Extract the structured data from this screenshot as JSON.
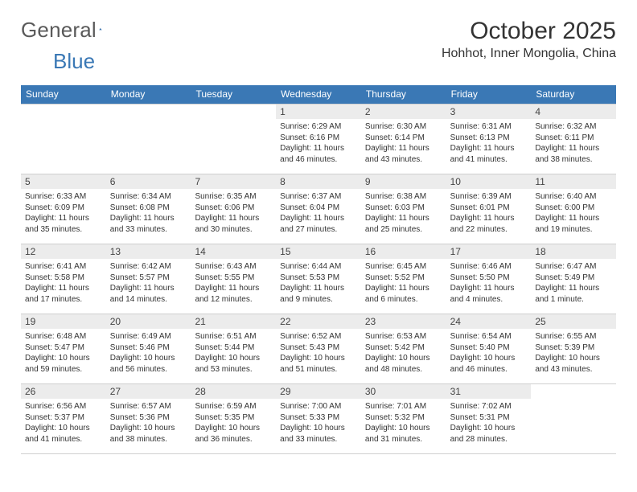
{
  "logo": {
    "general": "General",
    "blue": "Blue"
  },
  "header": {
    "month_title": "October 2025",
    "location": "Hohhot, Inner Mongolia, China"
  },
  "colors": {
    "header_bg": "#3a78b5",
    "header_text": "#ffffff",
    "daynum_bg": "#ececec",
    "border": "#cfcfcf",
    "text": "#333333"
  },
  "day_names": [
    "Sunday",
    "Monday",
    "Tuesday",
    "Wednesday",
    "Thursday",
    "Friday",
    "Saturday"
  ],
  "weeks": [
    [
      {
        "blank": true
      },
      {
        "blank": true
      },
      {
        "blank": true
      },
      {
        "d": "1",
        "sr": "Sunrise: 6:29 AM",
        "ss": "Sunset: 6:16 PM",
        "dl1": "Daylight: 11 hours",
        "dl2": "and 46 minutes."
      },
      {
        "d": "2",
        "sr": "Sunrise: 6:30 AM",
        "ss": "Sunset: 6:14 PM",
        "dl1": "Daylight: 11 hours",
        "dl2": "and 43 minutes."
      },
      {
        "d": "3",
        "sr": "Sunrise: 6:31 AM",
        "ss": "Sunset: 6:13 PM",
        "dl1": "Daylight: 11 hours",
        "dl2": "and 41 minutes."
      },
      {
        "d": "4",
        "sr": "Sunrise: 6:32 AM",
        "ss": "Sunset: 6:11 PM",
        "dl1": "Daylight: 11 hours",
        "dl2": "and 38 minutes."
      }
    ],
    [
      {
        "d": "5",
        "sr": "Sunrise: 6:33 AM",
        "ss": "Sunset: 6:09 PM",
        "dl1": "Daylight: 11 hours",
        "dl2": "and 35 minutes."
      },
      {
        "d": "6",
        "sr": "Sunrise: 6:34 AM",
        "ss": "Sunset: 6:08 PM",
        "dl1": "Daylight: 11 hours",
        "dl2": "and 33 minutes."
      },
      {
        "d": "7",
        "sr": "Sunrise: 6:35 AM",
        "ss": "Sunset: 6:06 PM",
        "dl1": "Daylight: 11 hours",
        "dl2": "and 30 minutes."
      },
      {
        "d": "8",
        "sr": "Sunrise: 6:37 AM",
        "ss": "Sunset: 6:04 PM",
        "dl1": "Daylight: 11 hours",
        "dl2": "and 27 minutes."
      },
      {
        "d": "9",
        "sr": "Sunrise: 6:38 AM",
        "ss": "Sunset: 6:03 PM",
        "dl1": "Daylight: 11 hours",
        "dl2": "and 25 minutes."
      },
      {
        "d": "10",
        "sr": "Sunrise: 6:39 AM",
        "ss": "Sunset: 6:01 PM",
        "dl1": "Daylight: 11 hours",
        "dl2": "and 22 minutes."
      },
      {
        "d": "11",
        "sr": "Sunrise: 6:40 AM",
        "ss": "Sunset: 6:00 PM",
        "dl1": "Daylight: 11 hours",
        "dl2": "and 19 minutes."
      }
    ],
    [
      {
        "d": "12",
        "sr": "Sunrise: 6:41 AM",
        "ss": "Sunset: 5:58 PM",
        "dl1": "Daylight: 11 hours",
        "dl2": "and 17 minutes."
      },
      {
        "d": "13",
        "sr": "Sunrise: 6:42 AM",
        "ss": "Sunset: 5:57 PM",
        "dl1": "Daylight: 11 hours",
        "dl2": "and 14 minutes."
      },
      {
        "d": "14",
        "sr": "Sunrise: 6:43 AM",
        "ss": "Sunset: 5:55 PM",
        "dl1": "Daylight: 11 hours",
        "dl2": "and 12 minutes."
      },
      {
        "d": "15",
        "sr": "Sunrise: 6:44 AM",
        "ss": "Sunset: 5:53 PM",
        "dl1": "Daylight: 11 hours",
        "dl2": "and 9 minutes."
      },
      {
        "d": "16",
        "sr": "Sunrise: 6:45 AM",
        "ss": "Sunset: 5:52 PM",
        "dl1": "Daylight: 11 hours",
        "dl2": "and 6 minutes."
      },
      {
        "d": "17",
        "sr": "Sunrise: 6:46 AM",
        "ss": "Sunset: 5:50 PM",
        "dl1": "Daylight: 11 hours",
        "dl2": "and 4 minutes."
      },
      {
        "d": "18",
        "sr": "Sunrise: 6:47 AM",
        "ss": "Sunset: 5:49 PM",
        "dl1": "Daylight: 11 hours",
        "dl2": "and 1 minute."
      }
    ],
    [
      {
        "d": "19",
        "sr": "Sunrise: 6:48 AM",
        "ss": "Sunset: 5:47 PM",
        "dl1": "Daylight: 10 hours",
        "dl2": "and 59 minutes."
      },
      {
        "d": "20",
        "sr": "Sunrise: 6:49 AM",
        "ss": "Sunset: 5:46 PM",
        "dl1": "Daylight: 10 hours",
        "dl2": "and 56 minutes."
      },
      {
        "d": "21",
        "sr": "Sunrise: 6:51 AM",
        "ss": "Sunset: 5:44 PM",
        "dl1": "Daylight: 10 hours",
        "dl2": "and 53 minutes."
      },
      {
        "d": "22",
        "sr": "Sunrise: 6:52 AM",
        "ss": "Sunset: 5:43 PM",
        "dl1": "Daylight: 10 hours",
        "dl2": "and 51 minutes."
      },
      {
        "d": "23",
        "sr": "Sunrise: 6:53 AM",
        "ss": "Sunset: 5:42 PM",
        "dl1": "Daylight: 10 hours",
        "dl2": "and 48 minutes."
      },
      {
        "d": "24",
        "sr": "Sunrise: 6:54 AM",
        "ss": "Sunset: 5:40 PM",
        "dl1": "Daylight: 10 hours",
        "dl2": "and 46 minutes."
      },
      {
        "d": "25",
        "sr": "Sunrise: 6:55 AM",
        "ss": "Sunset: 5:39 PM",
        "dl1": "Daylight: 10 hours",
        "dl2": "and 43 minutes."
      }
    ],
    [
      {
        "d": "26",
        "sr": "Sunrise: 6:56 AM",
        "ss": "Sunset: 5:37 PM",
        "dl1": "Daylight: 10 hours",
        "dl2": "and 41 minutes."
      },
      {
        "d": "27",
        "sr": "Sunrise: 6:57 AM",
        "ss": "Sunset: 5:36 PM",
        "dl1": "Daylight: 10 hours",
        "dl2": "and 38 minutes."
      },
      {
        "d": "28",
        "sr": "Sunrise: 6:59 AM",
        "ss": "Sunset: 5:35 PM",
        "dl1": "Daylight: 10 hours",
        "dl2": "and 36 minutes."
      },
      {
        "d": "29",
        "sr": "Sunrise: 7:00 AM",
        "ss": "Sunset: 5:33 PM",
        "dl1": "Daylight: 10 hours",
        "dl2": "and 33 minutes."
      },
      {
        "d": "30",
        "sr": "Sunrise: 7:01 AM",
        "ss": "Sunset: 5:32 PM",
        "dl1": "Daylight: 10 hours",
        "dl2": "and 31 minutes."
      },
      {
        "d": "31",
        "sr": "Sunrise: 7:02 AM",
        "ss": "Sunset: 5:31 PM",
        "dl1": "Daylight: 10 hours",
        "dl2": "and 28 minutes."
      },
      {
        "blank": true
      }
    ]
  ]
}
